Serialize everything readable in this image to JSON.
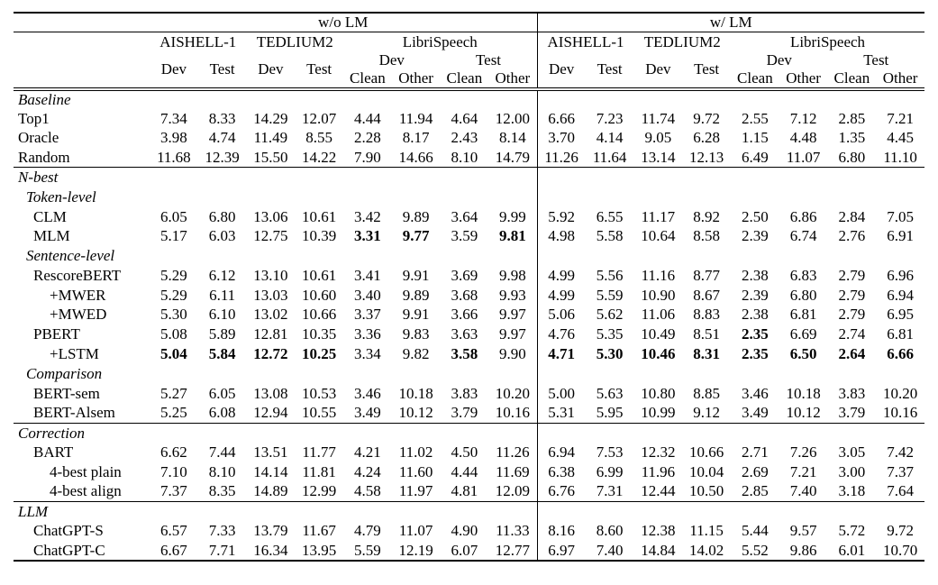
{
  "table": {
    "group_headers": [
      "w/o LM",
      "w/ LM"
    ],
    "dataset_headers": [
      "AISHELL-1",
      "TEDLIUM2",
      "LibriSpeech"
    ],
    "split_headers": {
      "dev": "Dev",
      "test": "Test"
    },
    "subset_headers": {
      "clean": "Clean",
      "other": "Other"
    },
    "rows": [
      {
        "label": "Baseline",
        "type": "section",
        "indent": 0
      },
      {
        "label": "Top1",
        "type": "data",
        "indent": 0,
        "values": [
          "7.34",
          "8.33",
          "14.29",
          "12.07",
          "4.44",
          "11.94",
          "4.64",
          "12.00",
          "6.66",
          "7.23",
          "11.74",
          "9.72",
          "2.55",
          "7.12",
          "2.85",
          "7.21"
        ],
        "bold": []
      },
      {
        "label": "Oracle",
        "type": "data",
        "indent": 0,
        "values": [
          "3.98",
          "4.74",
          "11.49",
          "8.55",
          "2.28",
          "8.17",
          "2.43",
          "8.14",
          "3.70",
          "4.14",
          "9.05",
          "6.28",
          "1.15",
          "4.48",
          "1.35",
          "4.45"
        ],
        "bold": []
      },
      {
        "label": "Random",
        "type": "data",
        "indent": 0,
        "values": [
          "11.68",
          "12.39",
          "15.50",
          "14.22",
          "7.90",
          "14.66",
          "8.10",
          "14.79",
          "11.26",
          "11.64",
          "13.14",
          "12.13",
          "6.49",
          "11.07",
          "6.80",
          "11.10"
        ],
        "bold": []
      },
      {
        "label": "N-best",
        "type": "section",
        "indent": 0,
        "rule": true
      },
      {
        "label": "Token-level",
        "type": "section",
        "indent": 1
      },
      {
        "label": "CLM",
        "type": "data",
        "indent": 2,
        "values": [
          "6.05",
          "6.80",
          "13.06",
          "10.61",
          "3.42",
          "9.89",
          "3.64",
          "9.99",
          "5.92",
          "6.55",
          "11.17",
          "8.92",
          "2.50",
          "6.86",
          "2.84",
          "7.05"
        ],
        "bold": []
      },
      {
        "label": "MLM",
        "type": "data",
        "indent": 2,
        "values": [
          "5.17",
          "6.03",
          "12.75",
          "10.39",
          "3.31",
          "9.77",
          "3.59",
          "9.81",
          "4.98",
          "5.58",
          "10.64",
          "8.58",
          "2.39",
          "6.74",
          "2.76",
          "6.91"
        ],
        "bold": [
          4,
          5,
          7
        ]
      },
      {
        "label": "Sentence-level",
        "type": "section",
        "indent": 1
      },
      {
        "label": "RescoreBERT",
        "type": "data",
        "indent": 2,
        "values": [
          "5.29",
          "6.12",
          "13.10",
          "10.61",
          "3.41",
          "9.91",
          "3.69",
          "9.98",
          "4.99",
          "5.56",
          "11.16",
          "8.77",
          "2.38",
          "6.83",
          "2.79",
          "6.96"
        ],
        "bold": []
      },
      {
        "label": "+MWER",
        "type": "data",
        "indent": 3,
        "values": [
          "5.29",
          "6.11",
          "13.03",
          "10.60",
          "3.40",
          "9.89",
          "3.68",
          "9.93",
          "4.99",
          "5.59",
          "10.90",
          "8.67",
          "2.39",
          "6.80",
          "2.79",
          "6.94"
        ],
        "bold": []
      },
      {
        "label": "+MWED",
        "type": "data",
        "indent": 3,
        "values": [
          "5.30",
          "6.10",
          "13.02",
          "10.66",
          "3.37",
          "9.91",
          "3.66",
          "9.97",
          "5.06",
          "5.62",
          "11.06",
          "8.83",
          "2.38",
          "6.81",
          "2.79",
          "6.95"
        ],
        "bold": []
      },
      {
        "label": "PBERT",
        "type": "data",
        "indent": 2,
        "values": [
          "5.08",
          "5.89",
          "12.81",
          "10.35",
          "3.36",
          "9.83",
          "3.63",
          "9.97",
          "4.76",
          "5.35",
          "10.49",
          "8.51",
          "2.35",
          "6.69",
          "2.74",
          "6.81"
        ],
        "bold": [
          12
        ]
      },
      {
        "label": "+LSTM",
        "type": "data",
        "indent": 3,
        "values": [
          "5.04",
          "5.84",
          "12.72",
          "10.25",
          "3.34",
          "9.82",
          "3.58",
          "9.90",
          "4.71",
          "5.30",
          "10.46",
          "8.31",
          "2.35",
          "6.50",
          "2.64",
          "6.66"
        ],
        "bold": [
          0,
          1,
          2,
          3,
          6,
          8,
          9,
          10,
          11,
          12,
          13,
          14,
          15
        ]
      },
      {
        "label": "Comparison",
        "type": "section",
        "indent": 1
      },
      {
        "label": "BERT-sem",
        "type": "data",
        "indent": 2,
        "values": [
          "5.27",
          "6.05",
          "13.08",
          "10.53",
          "3.46",
          "10.18",
          "3.83",
          "10.20",
          "5.00",
          "5.63",
          "10.80",
          "8.85",
          "3.46",
          "10.18",
          "3.83",
          "10.20"
        ],
        "bold": []
      },
      {
        "label": "BERT-Alsem",
        "type": "data",
        "indent": 2,
        "values": [
          "5.25",
          "6.08",
          "12.94",
          "10.55",
          "3.49",
          "10.12",
          "3.79",
          "10.16",
          "5.31",
          "5.95",
          "10.99",
          "9.12",
          "3.49",
          "10.12",
          "3.79",
          "10.16"
        ],
        "bold": []
      },
      {
        "label": "Correction",
        "type": "section",
        "indent": 0,
        "rule": true
      },
      {
        "label": "BART",
        "type": "data",
        "indent": 2,
        "values": [
          "6.62",
          "7.44",
          "13.51",
          "11.77",
          "4.21",
          "11.02",
          "4.50",
          "11.26",
          "6.94",
          "7.53",
          "12.32",
          "10.66",
          "2.71",
          "7.26",
          "3.05",
          "7.42"
        ],
        "bold": []
      },
      {
        "label": "4-best plain",
        "type": "data",
        "indent": 3,
        "values": [
          "7.10",
          "8.10",
          "14.14",
          "11.81",
          "4.24",
          "11.60",
          "4.44",
          "11.69",
          "6.38",
          "6.99",
          "11.96",
          "10.04",
          "2.69",
          "7.21",
          "3.00",
          "7.37"
        ],
        "bold": []
      },
      {
        "label": "4-best align",
        "type": "data",
        "indent": 3,
        "values": [
          "7.37",
          "8.35",
          "14.89",
          "12.99",
          "4.58",
          "11.97",
          "4.81",
          "12.09",
          "6.76",
          "7.31",
          "12.44",
          "10.50",
          "2.85",
          "7.40",
          "3.18",
          "7.64"
        ],
        "bold": []
      },
      {
        "label": "LLM",
        "type": "section",
        "indent": 0,
        "rule": true
      },
      {
        "label": "ChatGPT-S",
        "type": "data",
        "indent": 2,
        "values": [
          "6.57",
          "7.33",
          "13.79",
          "11.67",
          "4.79",
          "11.07",
          "4.90",
          "11.33",
          "8.16",
          "8.60",
          "12.38",
          "11.15",
          "5.44",
          "9.57",
          "5.72",
          "9.72"
        ],
        "bold": []
      },
      {
        "label": "ChatGPT-C",
        "type": "data",
        "indent": 2,
        "values": [
          "6.67",
          "7.71",
          "16.34",
          "13.95",
          "5.59",
          "12.19",
          "6.07",
          "12.77",
          "6.97",
          "7.40",
          "14.84",
          "14.02",
          "5.52",
          "9.86",
          "6.01",
          "10.70"
        ],
        "bold": []
      }
    ]
  }
}
